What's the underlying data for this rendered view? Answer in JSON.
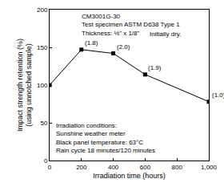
{
  "chart_data": {
    "type": "line",
    "xlabel": "Irradiation time (hours)",
    "ylabel": "Impact strength retention (%)\n(using unnotched sample)",
    "x": [
      0,
      200,
      400,
      600,
      1000
    ],
    "values": [
      100,
      147,
      142,
      114,
      78
    ],
    "point_labels": [
      null,
      "(1.8)",
      "(2.0)",
      "(1.9)",
      "(1.0)"
    ],
    "color": "#000000",
    "marker": "square",
    "line_style": "solid",
    "xlim": [
      0,
      1000
    ],
    "xticks": [
      0,
      200,
      400,
      600,
      800,
      {
        "value": 1000,
        "label": "1,000"
      }
    ],
    "ylim": [
      0,
      200
    ],
    "yticks": [
      0,
      50,
      100,
      150,
      200
    ],
    "grid": false,
    "annotations": {
      "specimen": [
        "CM3001G-30",
        "Test specimen ASTM D638 Type 1",
        "Thickness: ½\" x 1/8\""
      ],
      "specimen_note": "Initially dry.",
      "conditions": [
        "Irradiation conditions:",
        "Sunshine weather meter",
        "Black panel temperature: 63°C",
        "Rain cycle 18 minutes/120 minutes"
      ]
    }
  }
}
